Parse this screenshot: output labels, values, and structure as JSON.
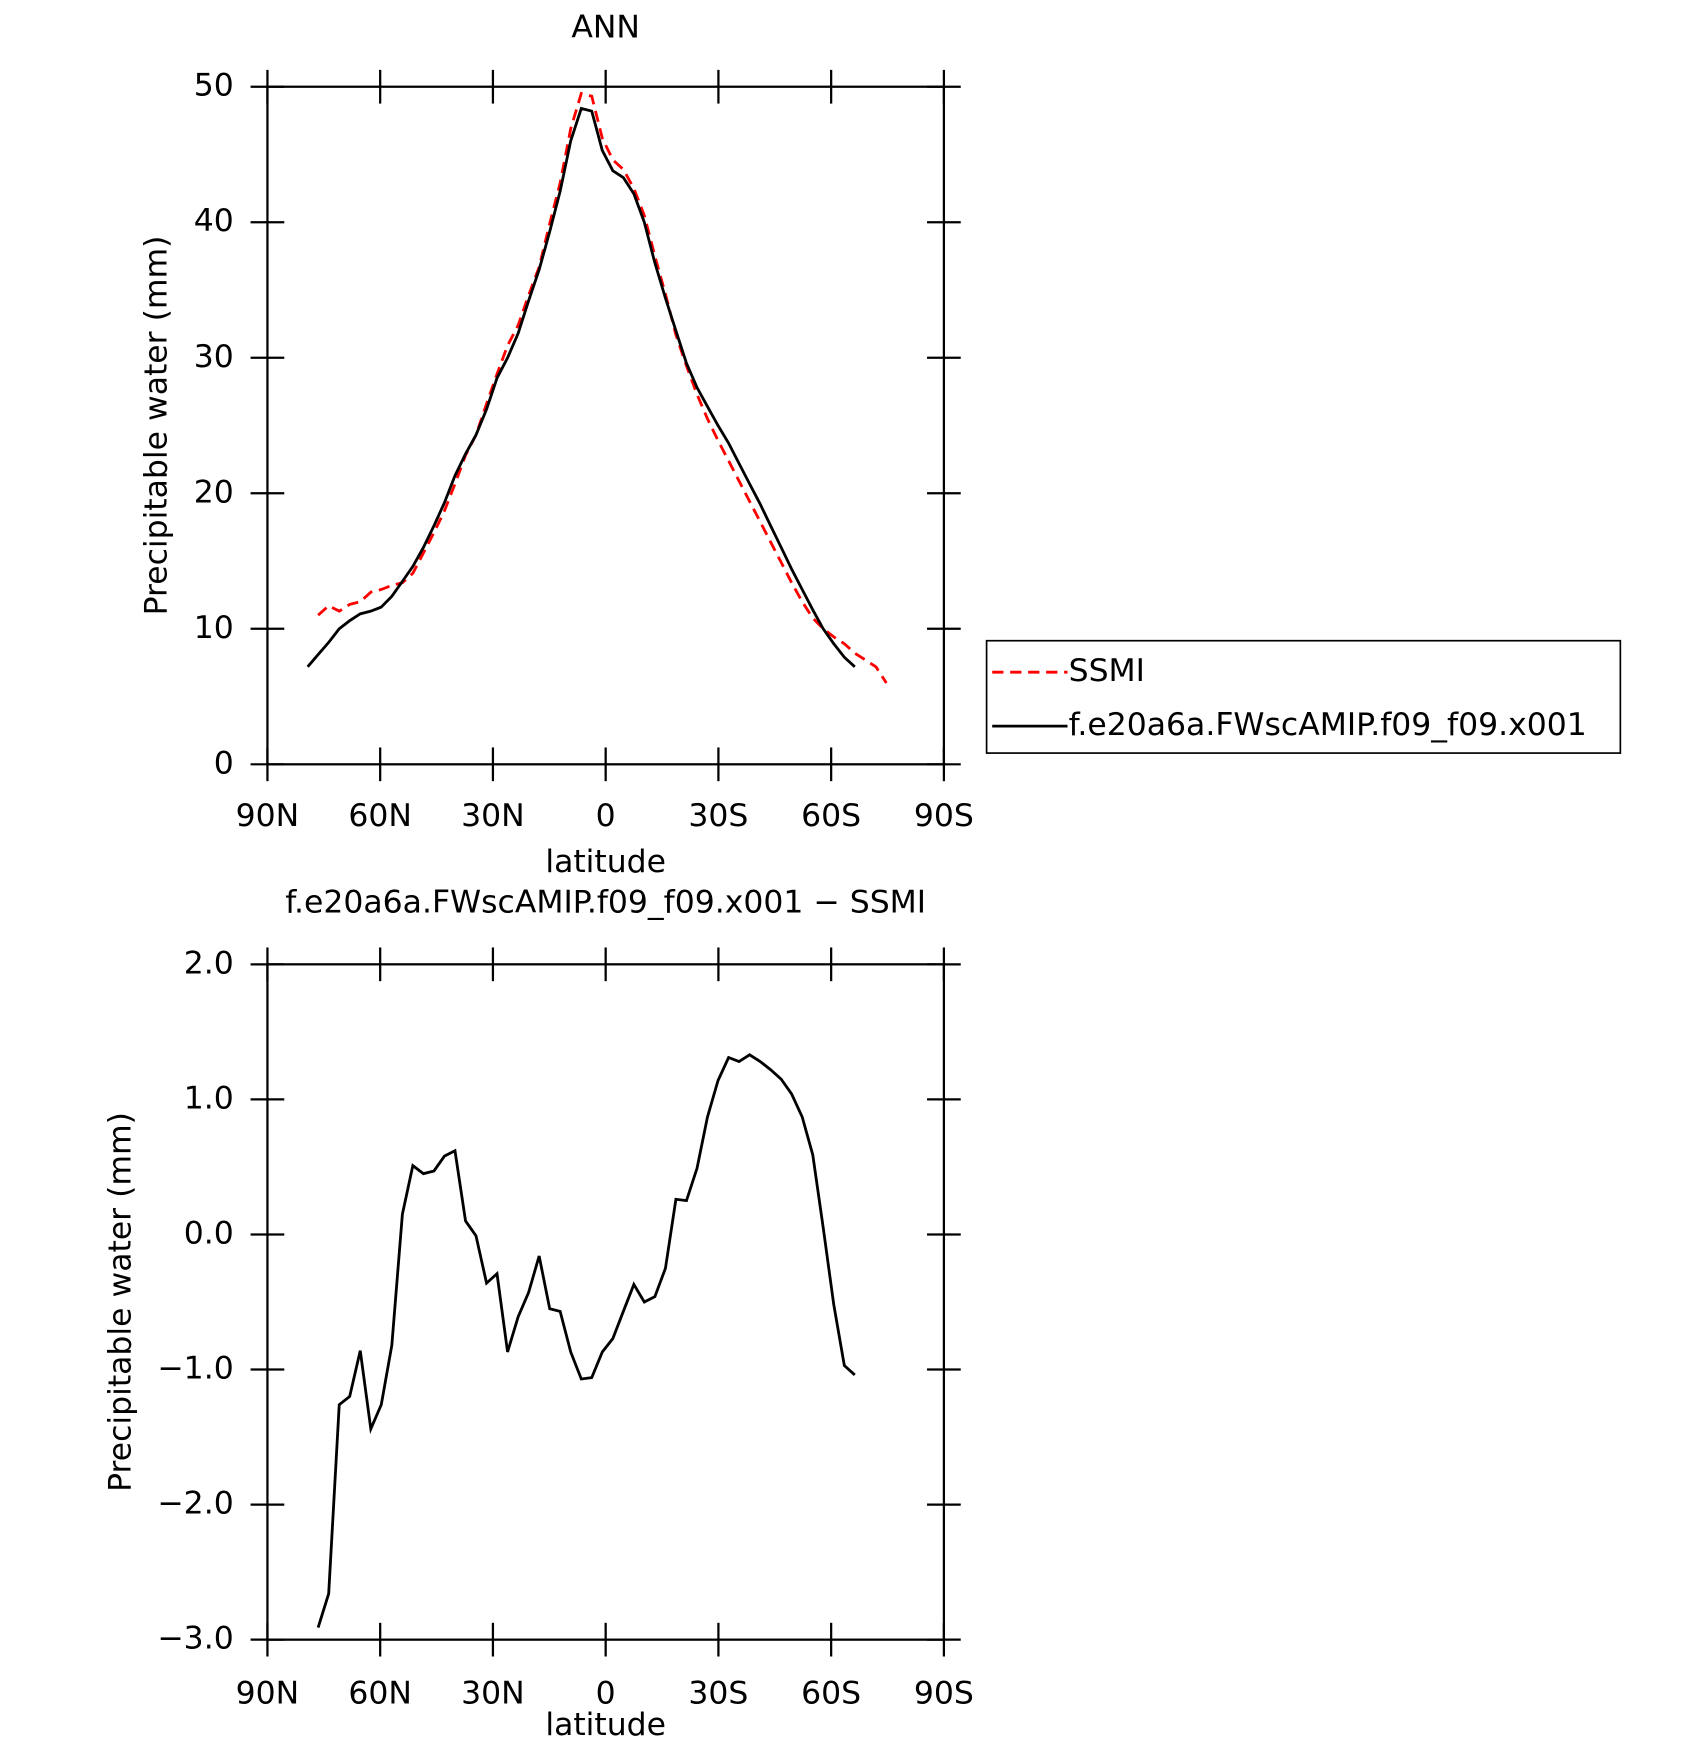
{
  "chart_data": [
    {
      "type": "line",
      "title": "ANN",
      "xlabel": "latitude",
      "ylabel": "Precipitable water (mm)",
      "x": [
        79.3,
        76.5,
        73.7,
        70.9,
        68.1,
        65.3,
        62.5,
        59.7,
        56.9,
        54.1,
        51.3,
        48.5,
        45.7,
        42.9,
        40.1,
        37.3,
        34.5,
        31.7,
        28.9,
        26.1,
        23.3,
        20.5,
        17.7,
        14.9,
        12.1,
        9.3,
        6.5,
        3.7,
        0.9,
        -1.9,
        -4.7,
        -7.5,
        -10.3,
        -13.1,
        -15.9,
        -18.7,
        -21.5,
        -24.3,
        -27.1,
        -29.9,
        -32.7,
        -35.5,
        -38.3,
        -41.1,
        -43.9,
        -46.7,
        -49.5,
        -52.3,
        -55.1,
        -57.9,
        -60.7,
        -63.5,
        -66.3,
        -69.1,
        -71.9,
        -74.7
      ],
      "xlim": [
        90,
        -90
      ],
      "xticks": [
        {
          "value": 90,
          "label": "90N"
        },
        {
          "value": 60,
          "label": "60N"
        },
        {
          "value": 30,
          "label": "30N"
        },
        0,
        {
          "value": -30,
          "label": "30S"
        },
        {
          "value": -60,
          "label": "60S"
        },
        {
          "value": -90,
          "label": "90S"
        }
      ],
      "ylim": [
        0,
        50
      ],
      "yticks": [
        0,
        10,
        20,
        30,
        40,
        50
      ],
      "legend": "right",
      "series": [
        {
          "name": "SSMI",
          "color": "#ff0000",
          "dashed": true,
          "values": [
            null,
            11.0,
            11.7,
            11.3,
            11.8,
            12.0,
            12.7,
            12.9,
            13.2,
            13.4,
            14.1,
            15.6,
            17.1,
            18.7,
            20.7,
            22.8,
            24.3,
            26.6,
            28.8,
            30.9,
            32.4,
            34.6,
            36.7,
            39.9,
            42.9,
            46.9,
            49.5,
            49.3,
            46.2,
            44.6,
            43.9,
            42.5,
            40.5,
            37.5,
            34.7,
            31.7,
            29.4,
            27.3,
            25.5,
            23.9,
            22.4,
            20.9,
            19.4,
            17.9,
            16.4,
            14.9,
            13.4,
            12.0,
            10.8,
            10.0,
            9.4,
            8.9,
            8.2,
            7.7,
            7.2,
            6.0
          ]
        },
        {
          "name": "f.e20a6a.FWscAMIP.f09_f09.x001",
          "color": "#000000",
          "dashed": false,
          "values": [
            7.2,
            8.1,
            9.0,
            10.0,
            10.6,
            11.1,
            11.3,
            11.6,
            12.4,
            13.5,
            14.6,
            16.0,
            17.6,
            19.3,
            21.3,
            22.9,
            24.3,
            26.2,
            28.5,
            30.0,
            31.8,
            34.2,
            36.5,
            39.3,
            42.3,
            46.0,
            48.4,
            48.2,
            45.3,
            43.8,
            43.3,
            42.1,
            40.0,
            37.0,
            34.4,
            32.0,
            29.6,
            27.8,
            26.4,
            25.0,
            23.7,
            22.2,
            20.7,
            19.2,
            17.6,
            16.0,
            14.4,
            12.9,
            11.4,
            10.0,
            8.9,
            7.9,
            7.2,
            null,
            null,
            null
          ]
        }
      ]
    },
    {
      "type": "line",
      "title": "f.e20a6a.FWscAMIP.f09_f09.x001 − SSMI",
      "xlabel": "latitude",
      "ylabel": "Precipitable water (mm)",
      "x": [
        76.5,
        73.7,
        70.9,
        68.1,
        65.3,
        62.5,
        59.7,
        56.9,
        54.1,
        51.3,
        48.5,
        45.7,
        42.9,
        40.1,
        37.3,
        34.5,
        31.7,
        28.9,
        26.1,
        23.3,
        20.5,
        17.7,
        14.9,
        12.1,
        9.3,
        6.5,
        3.7,
        0.9,
        -1.9,
        -4.7,
        -7.5,
        -10.3,
        -13.1,
        -15.9,
        -18.7,
        -21.5,
        -24.3,
        -27.1,
        -29.9,
        -32.7,
        -35.5,
        -38.3,
        -41.1,
        -43.9,
        -46.7,
        -49.5,
        -52.3,
        -55.1,
        -57.9,
        -60.7,
        -63.5,
        -66.3
      ],
      "xlim": [
        90,
        -90
      ],
      "xticks": [
        {
          "value": 90,
          "label": "90N"
        },
        {
          "value": 60,
          "label": "60N"
        },
        {
          "value": 30,
          "label": "30N"
        },
        0,
        {
          "value": -30,
          "label": "30S"
        },
        {
          "value": -60,
          "label": "60S"
        },
        {
          "value": -90,
          "label": "90S"
        }
      ],
      "ylim": [
        -3,
        2
      ],
      "yticks": [
        {
          "value": -3,
          "label": "−3.0"
        },
        {
          "value": -2,
          "label": "−2.0"
        },
        {
          "value": -1,
          "label": "−1.0"
        },
        {
          "value": 0,
          "label": "0.0"
        },
        {
          "value": 1,
          "label": "1.0"
        },
        {
          "value": 2,
          "label": "2.0"
        }
      ],
      "series": [
        {
          "color": "#000000",
          "dashed": false,
          "values": [
            -2.91,
            -2.66,
            -1.26,
            -1.2,
            -0.86,
            -1.44,
            -1.26,
            -0.82,
            0.15,
            0.51,
            0.45,
            0.47,
            0.58,
            0.62,
            0.1,
            -0.01,
            -0.36,
            -0.29,
            -0.87,
            -0.61,
            -0.43,
            -0.16,
            -0.55,
            -0.57,
            -0.87,
            -1.07,
            -1.06,
            -0.87,
            -0.77,
            -0.57,
            -0.37,
            -0.5,
            -0.46,
            -0.25,
            0.26,
            0.25,
            0.49,
            0.87,
            1.14,
            1.31,
            1.28,
            1.33,
            1.28,
            1.22,
            1.15,
            1.04,
            0.87,
            0.59,
            0.05,
            -0.52,
            -0.97,
            -1.04
          ]
        }
      ]
    }
  ]
}
